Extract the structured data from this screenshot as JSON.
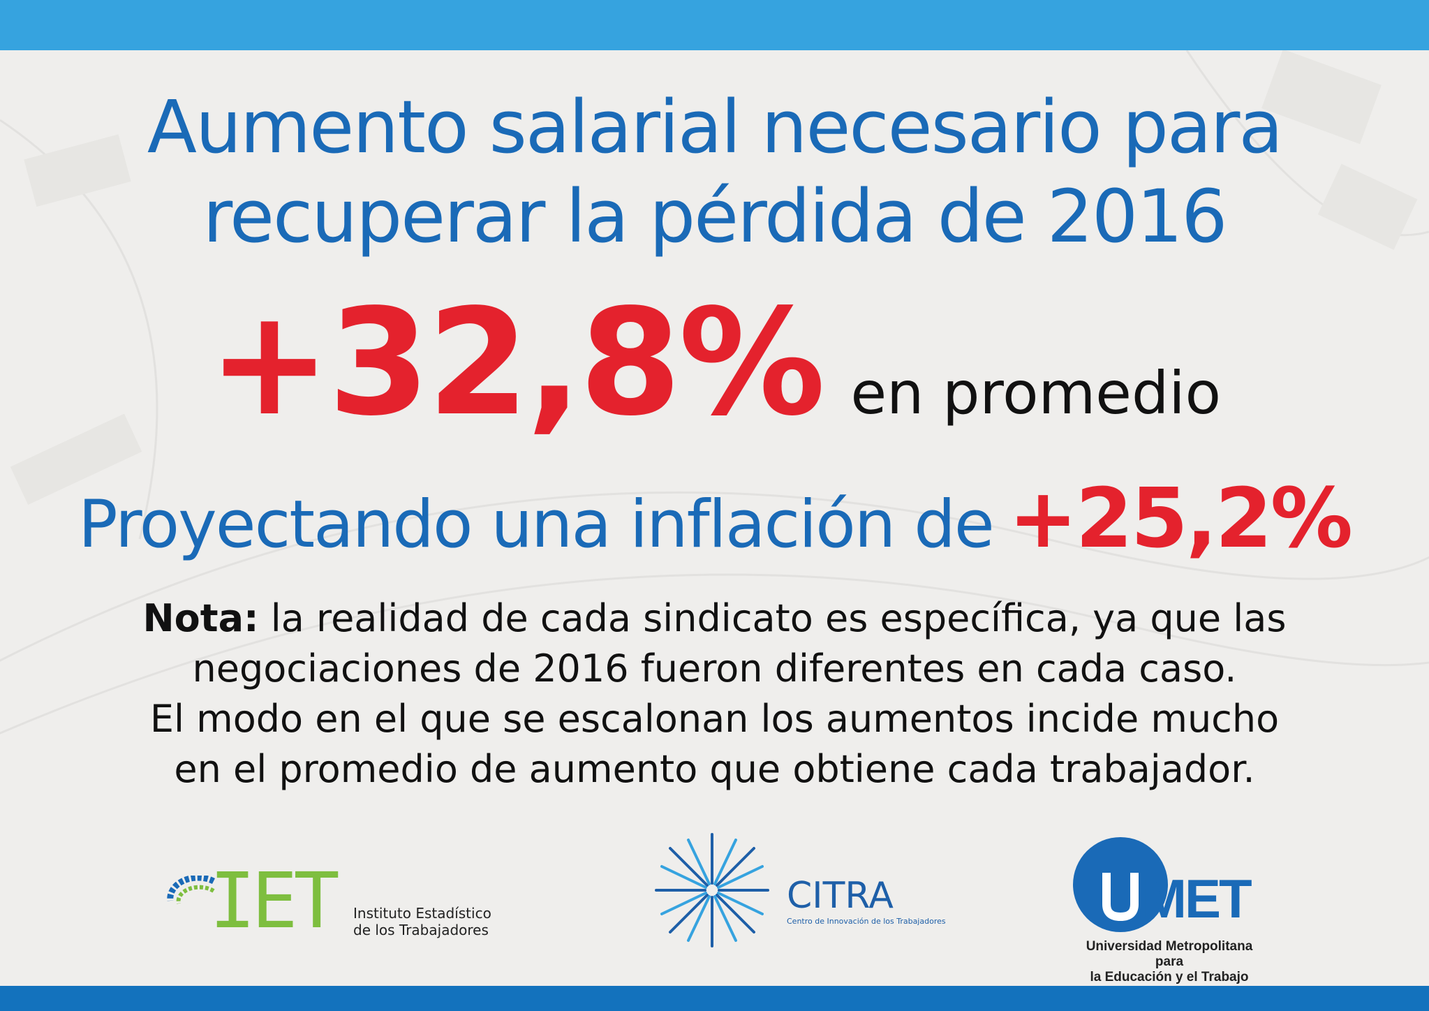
{
  "title": {
    "line1": "Aumento salarial necesario para",
    "line2": "recuperar la pérdida de 2016"
  },
  "headline": {
    "value": "+32,8%",
    "label": "en promedio"
  },
  "inflation": {
    "label": "Proyectando una inflación de",
    "value": "+25,2%"
  },
  "note": {
    "prefix": "Nota:",
    "line1": " la realidad de cada sindicato es específica, ya que las",
    "line2": "negociaciones de 2016 fueron diferentes en cada caso.",
    "line3": "El modo en el que se escalonan los aumentos incide mucho",
    "line4": "en el promedio de aumento que obtiene cada trabajador."
  },
  "logos": {
    "iet": {
      "name": "IET",
      "sub1": "Instituto Estadístico",
      "sub2": "de los Trabajadores"
    },
    "citra": {
      "name": "CITRA",
      "sub": "Centro de Innovación de los Trabajadores"
    },
    "umet": {
      "name": "MET",
      "sub1": "Universidad Metropolitana para",
      "sub2": "la Educación y el Trabajo"
    }
  },
  "colors": {
    "top_bar": "#36a3df",
    "bottom_bar": "#1372bd",
    "title_blue": "#1a6ab7",
    "accent_red": "#e4222d",
    "iet_green": "#7ebe3f"
  }
}
